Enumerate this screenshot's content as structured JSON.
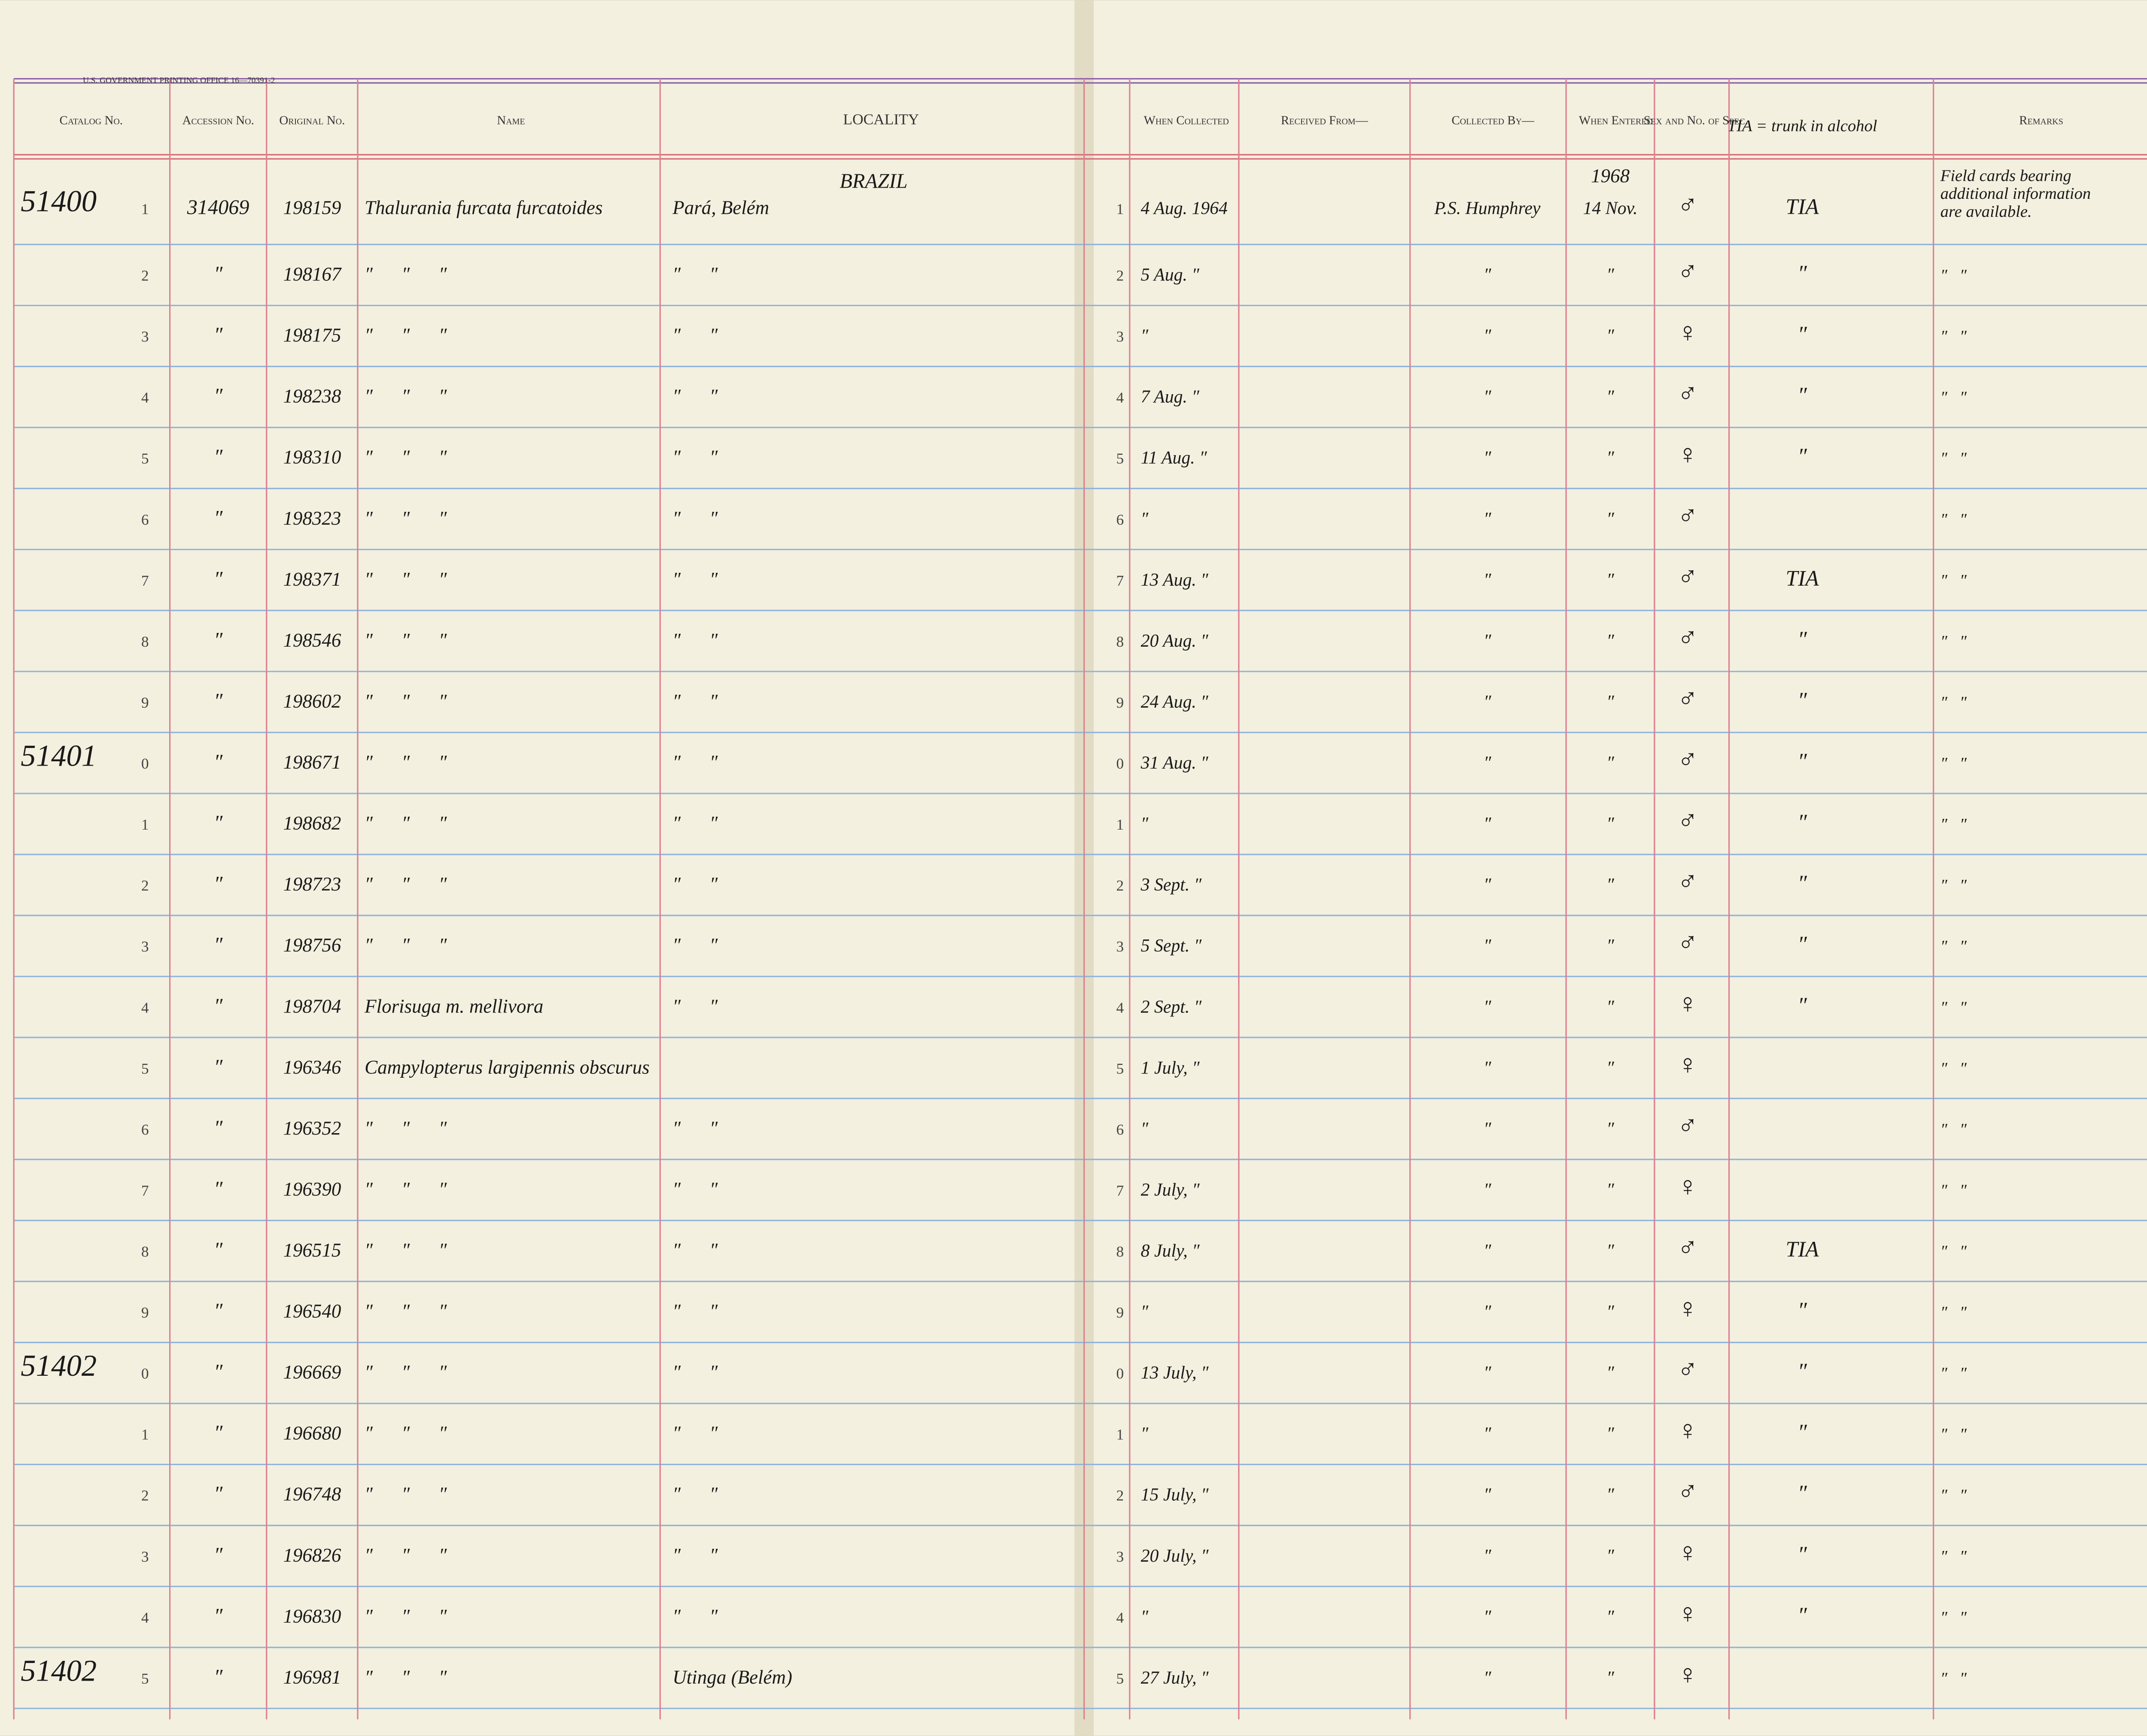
{
  "header": {
    "printer": "U.S. GOVERNMENT PRINTING OFFICE 16—70391-2",
    "columns": [
      "Catalog No.",
      "Accession No.",
      "Original No.",
      "Name",
      "LOCALITY",
      "When Collected",
      "Received From—",
      "Collected By—",
      "When Entered",
      "Sex and No. of Spec.",
      "TIA = trunk in alcohol",
      "Remarks"
    ],
    "country": "BRAZIL",
    "year": "1968"
  },
  "rows": [
    [
      "51400",
      "1",
      "314069",
      "198159",
      "Thalurania furcata furcatoides",
      "Pará, Belém",
      "1",
      "4 Aug. 1964",
      "P.S. Humphrey",
      "14 Nov.",
      "♂",
      "TIA",
      [
        "Field cards bearing",
        "additional information",
        "are available."
      ]
    ],
    [
      null,
      "2",
      "″",
      "198167",
      "″      ″      ″",
      "″      ″",
      "2",
      "5 Aug. ″",
      "″",
      "″",
      "♂",
      "″",
      "″   ″"
    ],
    [
      null,
      "3",
      "″",
      "198175",
      "″      ″      ″",
      "″      ″",
      "3",
      "″",
      "″",
      "″",
      "♀",
      "″",
      "″   ″"
    ],
    [
      null,
      "4",
      "″",
      "198238",
      "″      ″      ″",
      "″      ″",
      "4",
      "7 Aug. ″",
      "″",
      "″",
      "♂",
      "″",
      "″   ″"
    ],
    [
      null,
      "5",
      "″",
      "198310",
      "″      ″      ″",
      "″      ″",
      "5",
      "11 Aug. ″",
      "″",
      "″",
      "♀",
      "″",
      "″   ″"
    ],
    [
      null,
      "6",
      "″",
      "198323",
      "″      ″      ″",
      "″      ″",
      "6",
      "″",
      "″",
      "″",
      "♂",
      null,
      "″   ″"
    ],
    [
      null,
      "7",
      "″",
      "198371",
      "″      ″      ″",
      "″      ″",
      "7",
      "13 Aug. ″",
      "″",
      "″",
      "♂",
      "TIA",
      "″   ″"
    ],
    [
      null,
      "8",
      "″",
      "198546",
      "″      ″      ″",
      "″      ″",
      "8",
      "20 Aug. ″",
      "″",
      "″",
      "♂",
      "″",
      "″   ″"
    ],
    [
      null,
      "9",
      "″",
      "198602",
      "″      ″      ″",
      "″      ″",
      "9",
      "24 Aug. ″",
      "″",
      "″",
      "♂",
      "″",
      "″   ″"
    ],
    [
      "51401",
      "0",
      "″",
      "198671",
      "″      ″      ″",
      "″      ″",
      "0",
      "31 Aug. ″",
      "″",
      "″",
      "♂",
      "″",
      "″   ″"
    ],
    [
      null,
      "1",
      "″",
      "198682",
      "″      ″      ″",
      "″      ″",
      "1",
      "″",
      "″",
      "″",
      "♂",
      "″",
      "″   ″"
    ],
    [
      null,
      "2",
      "″",
      "198723",
      "″      ″      ″",
      "″      ″",
      "2",
      "3 Sept. ″",
      "″",
      "″",
      "♂",
      "″",
      "″   ″"
    ],
    [
      null,
      "3",
      "″",
      "198756",
      "″      ″      ″",
      "″      ″",
      "3",
      "5 Sept. ″",
      "″",
      "″",
      "♂",
      "″",
      "″   ″"
    ],
    [
      null,
      "4",
      "″",
      "198704",
      "Florisuga m. mellivora",
      "″      ″",
      "4",
      "2 Sept. ″",
      "″",
      "″",
      "♀",
      "″",
      "″   ″"
    ],
    [
      null,
      "5",
      "″",
      "196346",
      "Campylopterus largipennis obscurus",
      null,
      "5",
      "1 July, ″",
      "″",
      "″",
      "♀",
      null,
      "″   ″"
    ],
    [
      null,
      "6",
      "″",
      "196352",
      "″      ″      ″",
      "″      ″",
      "6",
      "″",
      "″",
      "″",
      "♂",
      null,
      "″   ″"
    ],
    [
      null,
      "7",
      "″",
      "196390",
      "″      ″      ″",
      "″      ″",
      "7",
      "2 July, ″",
      "″",
      "″",
      "♀",
      null,
      "″   ″"
    ],
    [
      null,
      "8",
      "″",
      "196515",
      "″      ″      ″",
      "″      ″",
      "8",
      "8 July, ″",
      "″",
      "″",
      "♂",
      "TIA",
      "″   ″"
    ],
    [
      null,
      "9",
      "″",
      "196540",
      "″      ″      ″",
      "″      ″",
      "9",
      "″",
      "″",
      "″",
      "♀",
      "″",
      "″   ″"
    ],
    [
      "51402",
      "0",
      "″",
      "196669",
      "″      ″      ″",
      "″      ″",
      "0",
      "13 July, ″",
      "″",
      "″",
      "♂",
      "″",
      "″   ″"
    ],
    [
      null,
      "1",
      "″",
      "196680",
      "″      ″      ″",
      "″      ″",
      "1",
      "″",
      "″",
      "″",
      "♀",
      "″",
      "″   ″"
    ],
    [
      null,
      "2",
      "″",
      "196748",
      "″      ″      ″",
      "″      ″",
      "2",
      "15 July, ″",
      "″",
      "″",
      "♂",
      "″",
      "″   ″"
    ],
    [
      null,
      "3",
      "″",
      "196826",
      "″      ″      ″",
      "″      ″",
      "3",
      "20 July, ″",
      "″",
      "″",
      "♀",
      "″",
      "″   ″"
    ],
    [
      null,
      "4",
      "″",
      "196830",
      "″      ″      ″",
      "″      ″",
      "4",
      "″",
      "″",
      "″",
      "♀",
      "″",
      "″   ″"
    ],
    [
      "51402",
      "5",
      "″",
      "196981",
      "″      ″      ″",
      "Utinga (Belém)",
      "5",
      "27 July, ″",
      "″",
      "″",
      "♀",
      null,
      "″   ″"
    ]
  ]
}
